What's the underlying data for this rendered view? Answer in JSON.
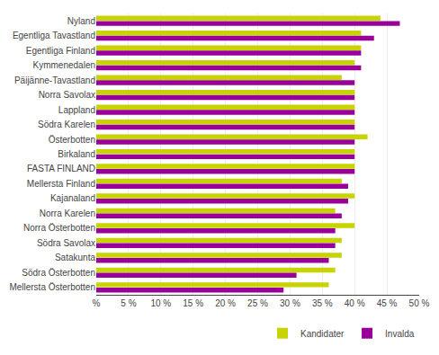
{
  "chart_data": {
    "type": "bar",
    "orientation": "horizontal",
    "categories": [
      "Nyland",
      "Egentliga Tavastland",
      "Egentliga Finland",
      "Kymmenedalen",
      "Päijänne-Tavastland",
      "Norra Savolax",
      "Lappland",
      "Södra Karelen",
      "Österbotten",
      "Birkaland",
      "FASTA FINLAND",
      "Mellersta Finland",
      "Kajanaland",
      "Norra Karelen",
      "Norra Österbotten",
      "Södra Savolax",
      "Satakunta",
      "Södra Österbotten",
      "Mellersta Österbotten"
    ],
    "series": [
      {
        "name": "Kandidater",
        "color": "#c8d400",
        "values": [
          44,
          41,
          41,
          40,
          38,
          40,
          40,
          40,
          42,
          40,
          40,
          38,
          40,
          37,
          40,
          38,
          38,
          37,
          36
        ]
      },
      {
        "name": "Invalda",
        "color": "#990099",
        "values": [
          47,
          43,
          41,
          41,
          40,
          40,
          40,
          40,
          40,
          40,
          40,
          39,
          39,
          38,
          37,
          37,
          36,
          31,
          29
        ]
      }
    ],
    "xlim": [
      0,
      50
    ],
    "xticks": [
      {
        "value": 0,
        "label": "%"
      },
      {
        "value": 5,
        "label": "5 %"
      },
      {
        "value": 10,
        "label": "10 %"
      },
      {
        "value": 15,
        "label": "15 %"
      },
      {
        "value": 20,
        "label": "20 %"
      },
      {
        "value": 25,
        "label": "25 %"
      },
      {
        "value": 30,
        "label": "30 %"
      },
      {
        "value": 35,
        "label": "35 %"
      },
      {
        "value": 40,
        "label": "40 %"
      },
      {
        "value": 45,
        "label": "45 %"
      },
      {
        "value": 50,
        "label": "50 %"
      }
    ],
    "grid": true,
    "legend": "lower right"
  }
}
